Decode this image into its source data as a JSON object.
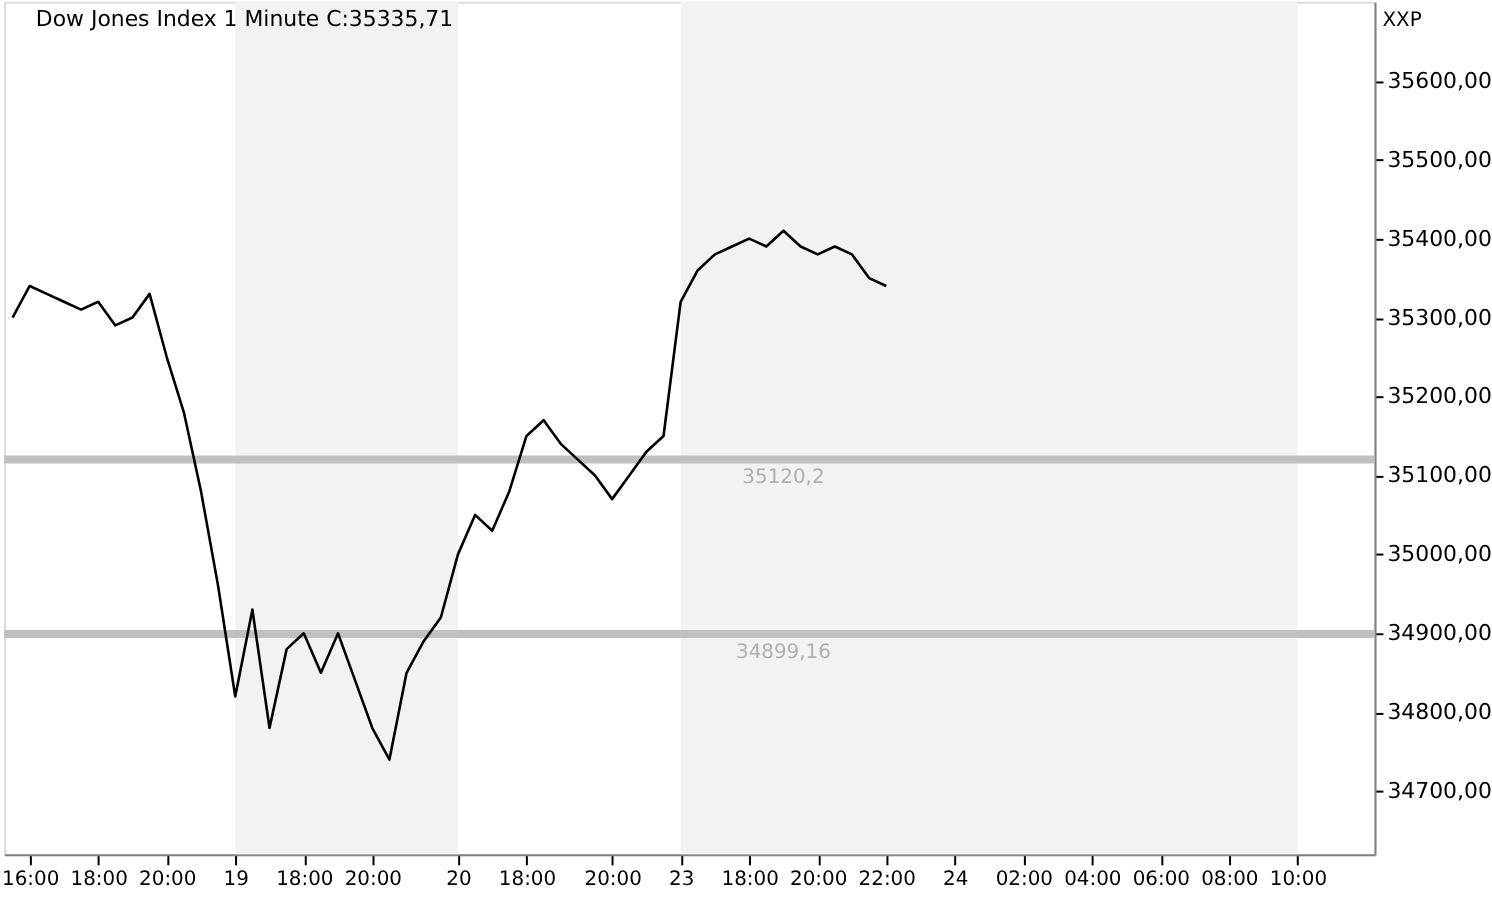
{
  "chart_data": {
    "type": "line",
    "title": "Dow Jones Index  1 Minute C:35335,71",
    "ylabel": "XXP",
    "categories": [
      null,
      "16:00",
      null,
      null,
      null,
      "18:00",
      null,
      null,
      null,
      "20:00",
      null,
      null,
      null,
      "19",
      null,
      null,
      null,
      "18:00",
      null,
      null,
      null,
      "20:00",
      null,
      null,
      null,
      null,
      "20",
      null,
      null,
      null,
      "18:00",
      null,
      null,
      null,
      null,
      "20:00",
      null,
      null,
      null,
      "23",
      null,
      null,
      null,
      "18:00",
      null,
      null,
      null,
      "20:00",
      null,
      null,
      null,
      "22:00",
      null,
      null,
      null,
      "24",
      null,
      null,
      null,
      "02:00",
      null,
      null,
      null,
      "04:00",
      null,
      null,
      null,
      "06:00",
      null,
      null,
      null,
      "08:00",
      null,
      null,
      null,
      "10:00",
      null,
      null,
      null,
      null
    ],
    "ylim": [
      34620,
      35700
    ],
    "yticks": [
      {
        "value": 34700,
        "label": "34700,00"
      },
      {
        "value": 34800,
        "label": "34800,00"
      },
      {
        "value": 34900,
        "label": "34900,00"
      },
      {
        "value": 35000,
        "label": "35000,00"
      },
      {
        "value": 35100,
        "label": "35100,00"
      },
      {
        "value": 35200,
        "label": "35200,00"
      },
      {
        "value": 35300,
        "label": "35300,00"
      },
      {
        "value": 35400,
        "label": "35400,00"
      },
      {
        "value": 35500,
        "label": "35500,00"
      },
      {
        "value": 35600,
        "label": "35600,00"
      }
    ],
    "series": [
      {
        "color": "#000000",
        "values": [
          35300,
          35340,
          35330,
          35320,
          35310,
          35320,
          35290,
          35300,
          35330,
          35250,
          35180,
          35080,
          34960,
          34820,
          34930,
          34780,
          34880,
          34900,
          34850,
          34900,
          34840,
          34780,
          34740,
          34850,
          34890,
          34920,
          35000,
          35050,
          35030,
          35080,
          35150,
          35170,
          35140,
          35120,
          35100,
          35070,
          35100,
          35130,
          35150,
          35320,
          35360,
          35380,
          35390,
          35400,
          35390,
          35410,
          35390,
          35380,
          35390,
          35380,
          35350,
          35340,
          null,
          null,
          null,
          null,
          null,
          null,
          null,
          null,
          null,
          null,
          null,
          null,
          null,
          null,
          null,
          null,
          null,
          null,
          null,
          null,
          null,
          null,
          null,
          null,
          null,
          null,
          null,
          null
        ]
      }
    ],
    "bands": [
      {
        "axis": "x",
        "from": "19",
        "to": "20",
        "color": "#f2f2f2"
      },
      {
        "axis": "x",
        "from": "23",
        "to": "10:00",
        "color": "#f2f2f2"
      }
    ],
    "ref_lines": [
      {
        "axis": "y",
        "value": 35120.2,
        "label": "35120,2",
        "color": "#c0c0c0"
      },
      {
        "axis": "y",
        "value": 34899.16,
        "label": "34899,16",
        "color": "#c0c0c0"
      }
    ]
  }
}
